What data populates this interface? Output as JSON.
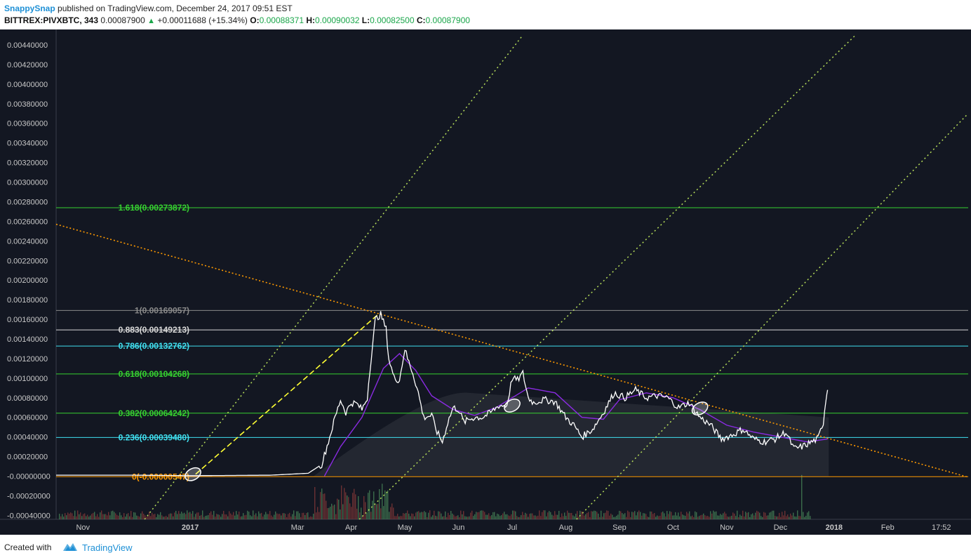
{
  "header": {
    "author": "SnappySnap",
    "published_text": "published on TradingView.com, December 24, 2017 09:51 EST",
    "symbol": "BITTREX:PIVXBTC, 343",
    "last": "0.00087900",
    "change": "+0.00011688 (+15.34%)",
    "o_label": "O:",
    "o_value": "0.00088371",
    "h_label": "H:",
    "h_value": "0.00090032",
    "l_label": "L:",
    "l_value": "0.00082500",
    "c_label": "C:",
    "c_value": "0.00087900"
  },
  "footer": {
    "created_with": "Created with",
    "brand": "TradingView"
  },
  "colors": {
    "background": "#131722",
    "price_line": "#ffffff",
    "ma_line": "#8a2be2",
    "fib_green": "#36d130",
    "fib_cyan": "#40e0f0",
    "fib_white": "#d8d8d8",
    "fib_gray": "#8a8a8a",
    "fib_orange": "#ff9a00",
    "trendline": "#ff9a00",
    "channel": "#b8e05a",
    "arrow": "#ffff33"
  },
  "chart_data": {
    "type": "line",
    "title": "BITTREX:PIVXBTC, 343",
    "ylim": [
      -0.00044,
      0.0045
    ],
    "y_ticks": [
      "0.00440000",
      "0.00420000",
      "0.00400000",
      "0.00380000",
      "0.00360000",
      "0.00340000",
      "0.00320000",
      "0.00300000",
      "0.00280000",
      "0.00260000",
      "0.00240000",
      "0.00220000",
      "0.00200000",
      "0.00180000",
      "0.00160000",
      "0.00140000",
      "0.00120000",
      "0.00100000",
      "0.00080000",
      "0.00060000",
      "0.00040000",
      "0.00020000",
      "-0.00000000",
      "-0.00020000",
      "-0.00040000"
    ],
    "y_tick_values": [
      0.0044,
      0.0042,
      0.004,
      0.0038,
      0.0036,
      0.0034,
      0.0032,
      0.003,
      0.0028,
      0.0026,
      0.0024,
      0.0022,
      0.002,
      0.0018,
      0.0016,
      0.0014,
      0.0012,
      0.001,
      0.0008,
      0.0006,
      0.0004,
      0.0002,
      0,
      -0.0002,
      -0.0004
    ],
    "x_ticks": [
      {
        "label": "Nov",
        "t": 1.0
      },
      {
        "label": "2017",
        "t": 3.0,
        "bold": true
      },
      {
        "label": "Mar",
        "t": 5.0
      },
      {
        "label": "Apr",
        "t": 6.0
      },
      {
        "label": "May",
        "t": 7.0
      },
      {
        "label": "Jun",
        "t": 8.0
      },
      {
        "label": "Jul",
        "t": 9.0
      },
      {
        "label": "Aug",
        "t": 10.0
      },
      {
        "label": "Sep",
        "t": 11.0
      },
      {
        "label": "Oct",
        "t": 12.0
      },
      {
        "label": "Nov",
        "t": 13.0
      },
      {
        "label": "Dec",
        "t": 14.0
      },
      {
        "label": "2018",
        "t": 15.0,
        "bold": true
      },
      {
        "label": "Feb",
        "t": 16.0
      },
      {
        "label": "17:52",
        "t": 17.0
      }
    ],
    "x_range": [
      0.5,
      17.5
    ],
    "series": [
      {
        "name": "PIVXBTC",
        "points": [
          [
            0.5,
            1e-05
          ],
          [
            2.0,
            1e-05
          ],
          [
            3.0,
            5e-06
          ],
          [
            4.5,
            1e-05
          ],
          [
            5.2,
            3e-05
          ],
          [
            5.45,
            0.00012
          ],
          [
            5.6,
            0.0004
          ],
          [
            5.7,
            0.0006
          ],
          [
            5.8,
            0.00078
          ],
          [
            5.9,
            0.00065
          ],
          [
            6.0,
            0.00075
          ],
          [
            6.1,
            0.00074
          ],
          [
            6.2,
            0.00068
          ],
          [
            6.3,
            0.0008
          ],
          [
            6.35,
            0.0011
          ],
          [
            6.45,
            0.0016
          ],
          [
            6.55,
            0.00165
          ],
          [
            6.65,
            0.0015
          ],
          [
            6.7,
            0.0012
          ],
          [
            6.8,
            0.001
          ],
          [
            6.9,
            0.00098
          ],
          [
            7.0,
            0.0013
          ],
          [
            7.05,
            0.0012
          ],
          [
            7.15,
            0.00105
          ],
          [
            7.25,
            0.00085
          ],
          [
            7.35,
            0.0006
          ],
          [
            7.5,
            0.00062
          ],
          [
            7.6,
            0.00045
          ],
          [
            7.7,
            0.00035
          ],
          [
            7.8,
            0.00055
          ],
          [
            7.9,
            0.0007
          ],
          [
            8.0,
            0.00068
          ],
          [
            8.1,
            0.00055
          ],
          [
            8.2,
            0.00058
          ],
          [
            8.3,
            0.0006
          ],
          [
            8.45,
            0.0006
          ],
          [
            8.6,
            0.00065
          ],
          [
            8.75,
            0.00072
          ],
          [
            8.9,
            0.00072
          ],
          [
            9.0,
            0.001
          ],
          [
            9.1,
            0.00098
          ],
          [
            9.2,
            0.00105
          ],
          [
            9.3,
            0.0008
          ],
          [
            9.4,
            0.00075
          ],
          [
            9.6,
            0.00078
          ],
          [
            9.8,
            0.00076
          ],
          [
            10.0,
            0.0006
          ],
          [
            10.15,
            0.00052
          ],
          [
            10.3,
            0.0004
          ],
          [
            10.5,
            0.00048
          ],
          [
            10.7,
            0.00065
          ],
          [
            10.9,
            0.00085
          ],
          [
            11.1,
            0.0008
          ],
          [
            11.3,
            0.00088
          ],
          [
            11.5,
            0.0008
          ],
          [
            11.7,
            0.00082
          ],
          [
            11.9,
            0.0008
          ],
          [
            12.1,
            0.0007
          ],
          [
            12.3,
            0.00075
          ],
          [
            12.5,
            0.0006
          ],
          [
            12.7,
            0.00052
          ],
          [
            12.9,
            0.00038
          ],
          [
            13.1,
            0.00042
          ],
          [
            13.3,
            0.00048
          ],
          [
            13.5,
            0.00038
          ],
          [
            13.7,
            0.00035
          ],
          [
            13.9,
            0.00038
          ],
          [
            14.1,
            0.00045
          ],
          [
            14.25,
            0.00028
          ],
          [
            14.4,
            0.0003
          ],
          [
            14.55,
            0.00034
          ],
          [
            14.7,
            0.00038
          ],
          [
            14.8,
            0.00055
          ],
          [
            14.85,
            0.0008
          ],
          [
            14.88,
            0.00088
          ]
        ]
      },
      {
        "name": "MA",
        "points": [
          [
            5.5,
            0.0
          ],
          [
            5.8,
            0.0003
          ],
          [
            6.2,
            0.0006
          ],
          [
            6.6,
            0.0011
          ],
          [
            6.9,
            0.00125
          ],
          [
            7.2,
            0.00108
          ],
          [
            7.5,
            0.00082
          ],
          [
            7.9,
            0.00068
          ],
          [
            8.3,
            0.00062
          ],
          [
            8.7,
            0.0007
          ],
          [
            9.0,
            0.0008
          ],
          [
            9.3,
            0.0009
          ],
          [
            9.8,
            0.00085
          ],
          [
            10.3,
            0.0006
          ],
          [
            10.7,
            0.00058
          ],
          [
            11.0,
            0.00078
          ],
          [
            11.5,
            0.00085
          ],
          [
            12.0,
            0.0008
          ],
          [
            12.5,
            0.00068
          ],
          [
            13.0,
            0.00052
          ],
          [
            13.5,
            0.00045
          ],
          [
            14.0,
            0.0004
          ],
          [
            14.5,
            0.00035
          ],
          [
            14.88,
            0.00038
          ]
        ]
      }
    ],
    "fib_levels": [
      {
        "label": "1.618(0.00273872)",
        "value": 0.00273872,
        "color": "fib_green"
      },
      {
        "label": "1(0.00169057)",
        "value": 0.00169057,
        "color": "fib_gray"
      },
      {
        "label": "0.883(0.00149213)",
        "value": 0.00149213,
        "color": "fib_white"
      },
      {
        "label": "0.786(0.00132762)",
        "value": 0.00132762,
        "color": "fib_cyan"
      },
      {
        "label": "0.618(0.00104268)",
        "value": 0.00104268,
        "color": "fib_green"
      },
      {
        "label": "0.382(0.00064242)",
        "value": 0.00064242,
        "color": "fib_green"
      },
      {
        "label": "0.236(0.00039480)",
        "value": 0.0003948,
        "color": "fib_cyan"
      },
      {
        "label": "0(-0.00000547)",
        "value": -5.47e-06,
        "color": "fib_orange"
      }
    ],
    "trendline": {
      "from": [
        0.5,
        0.00257
      ],
      "to": [
        17.5,
        -1e-05
      ]
    },
    "channel_lines": [
      {
        "from": [
          2.15,
          -0.00044
        ],
        "to": [
          9.2,
          0.0045
        ]
      },
      {
        "from": [
          6.15,
          -0.00044
        ],
        "to": [
          15.4,
          0.0045
        ]
      },
      {
        "from": [
          10.2,
          -0.00044
        ],
        "to": [
          17.5,
          0.0037
        ]
      }
    ],
    "arrow": {
      "from": [
        3.1,
        2e-05
      ],
      "to": [
        6.5,
        0.00165
      ]
    },
    "ellipses": [
      [
        3.05,
        2e-05
      ],
      [
        9.0,
        0.00072
      ],
      [
        12.5,
        0.00069
      ]
    ]
  }
}
